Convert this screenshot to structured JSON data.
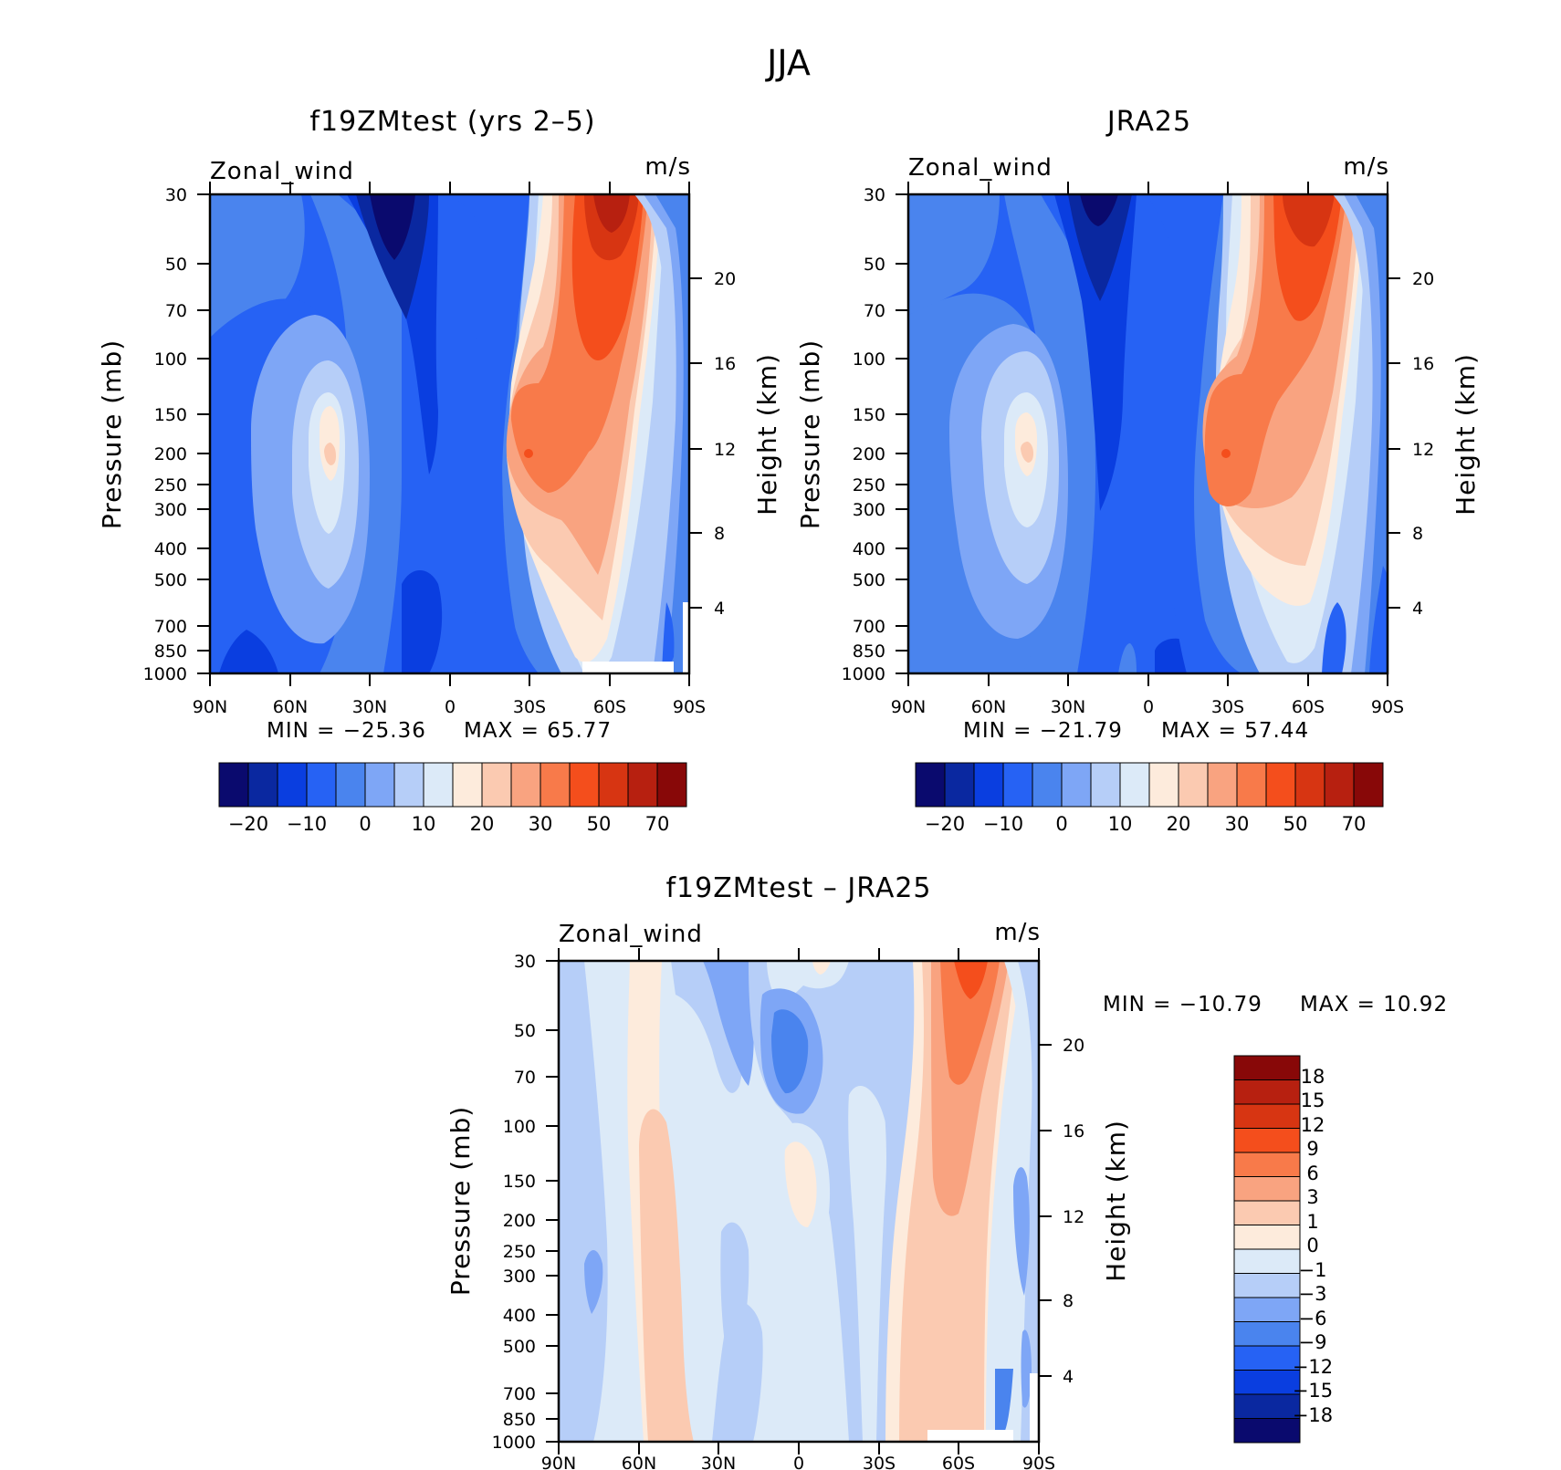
{
  "figure_title": "JJA",
  "colors": {
    "full_palette": [
      "#0a0a6e",
      "#0a28a0",
      "#0a3ee0",
      "#2662f4",
      "#4a84ee",
      "#7ea6f6",
      "#b6cef8",
      "#dceaf8",
      "#fdebdc",
      "#fbcab1",
      "#f9a380",
      "#f87a4a",
      "#f44e1c",
      "#d73512",
      "#b72010",
      "#880808"
    ],
    "diff_palette": [
      "#0a0a6e",
      "#0a28a0",
      "#0a3ee0",
      "#2662f4",
      "#4a84ee",
      "#7ea6f6",
      "#b6cef8",
      "#dceaf8",
      "#fdebdc",
      "#fbcab1",
      "#f9a380",
      "#f87a4a",
      "#f44e1c",
      "#d73512",
      "#b72010",
      "#880808"
    ]
  },
  "panels": [
    {
      "title": "f19ZMtest (yrs 2–5)",
      "left_label": "Zonal_wind",
      "right_label": "m/s",
      "ylabel": "Pressure (mb)",
      "ylabel2": "Height (km)",
      "min_text": "MIN = −25.36",
      "max_text": "MAX =   65.77",
      "colorbar_labels": [
        "−20",
        "−10",
        "0",
        "10",
        "20",
        "30",
        "50",
        "70"
      ]
    },
    {
      "title": "JRA25",
      "left_label": "Zonal_wind",
      "right_label": "m/s",
      "ylabel": "Pressure (mb)",
      "ylabel2": "Height (km)",
      "min_text": "MIN = −21.79",
      "max_text": "MAX =   57.44",
      "colorbar_labels": [
        "−20",
        "−10",
        "0",
        "10",
        "20",
        "30",
        "50",
        "70"
      ]
    },
    {
      "title": "f19ZMtest – JRA25",
      "left_label": "Zonal_wind",
      "right_label": "m/s",
      "ylabel": "Pressure (mb)",
      "ylabel2": "Height (km)",
      "min_text": "MIN = −10.79",
      "max_text": "MAX =   10.92",
      "colorbar_labels": [
        "18",
        "15",
        "12",
        "9",
        "6",
        "3",
        "1",
        "0",
        "−1",
        "−3",
        "−6",
        "−9",
        "−12",
        "−15",
        "−18"
      ]
    }
  ],
  "chart_data": [
    {
      "type": "heatmap",
      "title": "f19ZMtest (yrs 2–5)",
      "xlabel": "",
      "ylabel": "Pressure (mb)",
      "x_ticks": [
        "90N",
        "60N",
        "30N",
        "0",
        "30S",
        "60S",
        "90S"
      ],
      "y_ticks": [
        "30",
        "50",
        "70",
        "100",
        "150",
        "200",
        "250",
        "300",
        "400",
        "500",
        "700",
        "850",
        "1000"
      ],
      "y2_ticks": [
        "20",
        "16",
        "12",
        "8",
        "4"
      ],
      "y_scale": "log",
      "ylim": [
        1000,
        30
      ],
      "contour_levels": [
        -25,
        -20,
        -15,
        -10,
        -5,
        0,
        5,
        10,
        15,
        20,
        25,
        30,
        40,
        50,
        60,
        70
      ],
      "min": -25.36,
      "max": 65.77,
      "features": [
        {
          "name": "easterly core",
          "lat": "20N",
          "pressure": 40,
          "value": -25
        },
        {
          "name": "southern westerly jet",
          "lat": "60S",
          "pressure": 40,
          "value": 65
        },
        {
          "name": "subtropical jet",
          "lat": "30S",
          "pressure": 200,
          "value": 45
        },
        {
          "name": "northern jet",
          "lat": "45N",
          "pressure": 200,
          "value": 18
        }
      ]
    },
    {
      "type": "heatmap",
      "title": "JRA25",
      "xlabel": "",
      "ylabel": "Pressure (mb)",
      "x_ticks": [
        "90N",
        "60N",
        "30N",
        "0",
        "30S",
        "60S",
        "90S"
      ],
      "y_ticks": [
        "30",
        "50",
        "70",
        "100",
        "150",
        "200",
        "250",
        "300",
        "400",
        "500",
        "700",
        "850",
        "1000"
      ],
      "y2_ticks": [
        "20",
        "16",
        "12",
        "8",
        "4"
      ],
      "y_scale": "log",
      "ylim": [
        1000,
        30
      ],
      "contour_levels": [
        -25,
        -20,
        -15,
        -10,
        -5,
        0,
        5,
        10,
        15,
        20,
        25,
        30,
        40,
        50,
        60,
        70
      ],
      "min": -21.79,
      "max": 57.44,
      "features": [
        {
          "name": "easterly core",
          "lat": "15N",
          "pressure": 35,
          "value": -22
        },
        {
          "name": "southern westerly jet",
          "lat": "60S",
          "pressure": 40,
          "value": 57
        },
        {
          "name": "subtropical jet",
          "lat": "30S",
          "pressure": 200,
          "value": 45
        },
        {
          "name": "northern jet",
          "lat": "45N",
          "pressure": 200,
          "value": 18
        }
      ]
    },
    {
      "type": "heatmap",
      "title": "f19ZMtest – JRA25",
      "xlabel": "",
      "ylabel": "Pressure (mb)",
      "x_ticks": [
        "90N",
        "60N",
        "30N",
        "0",
        "30S",
        "60S",
        "90S"
      ],
      "y_ticks": [
        "30",
        "50",
        "70",
        "100",
        "150",
        "200",
        "250",
        "300",
        "400",
        "500",
        "700",
        "850",
        "1000"
      ],
      "y2_ticks": [
        "20",
        "16",
        "12",
        "8",
        "4"
      ],
      "y_scale": "log",
      "ylim": [
        1000,
        30
      ],
      "contour_levels": [
        -18,
        -15,
        -12,
        -9,
        -6,
        -3,
        -1,
        0,
        1,
        3,
        6,
        9,
        12,
        15,
        18
      ],
      "min": -10.79,
      "max": 10.92,
      "features": [
        {
          "name": "positive band",
          "lat": "60S",
          "pressure": 35,
          "value": 9
        },
        {
          "name": "positive band",
          "lat": "55N",
          "pressure": 300,
          "value": 3
        },
        {
          "name": "negative core",
          "lat": "0",
          "pressure": 60,
          "value": -9
        },
        {
          "name": "positive patch",
          "lat": "0",
          "pressure": 150,
          "value": 3
        }
      ]
    }
  ]
}
